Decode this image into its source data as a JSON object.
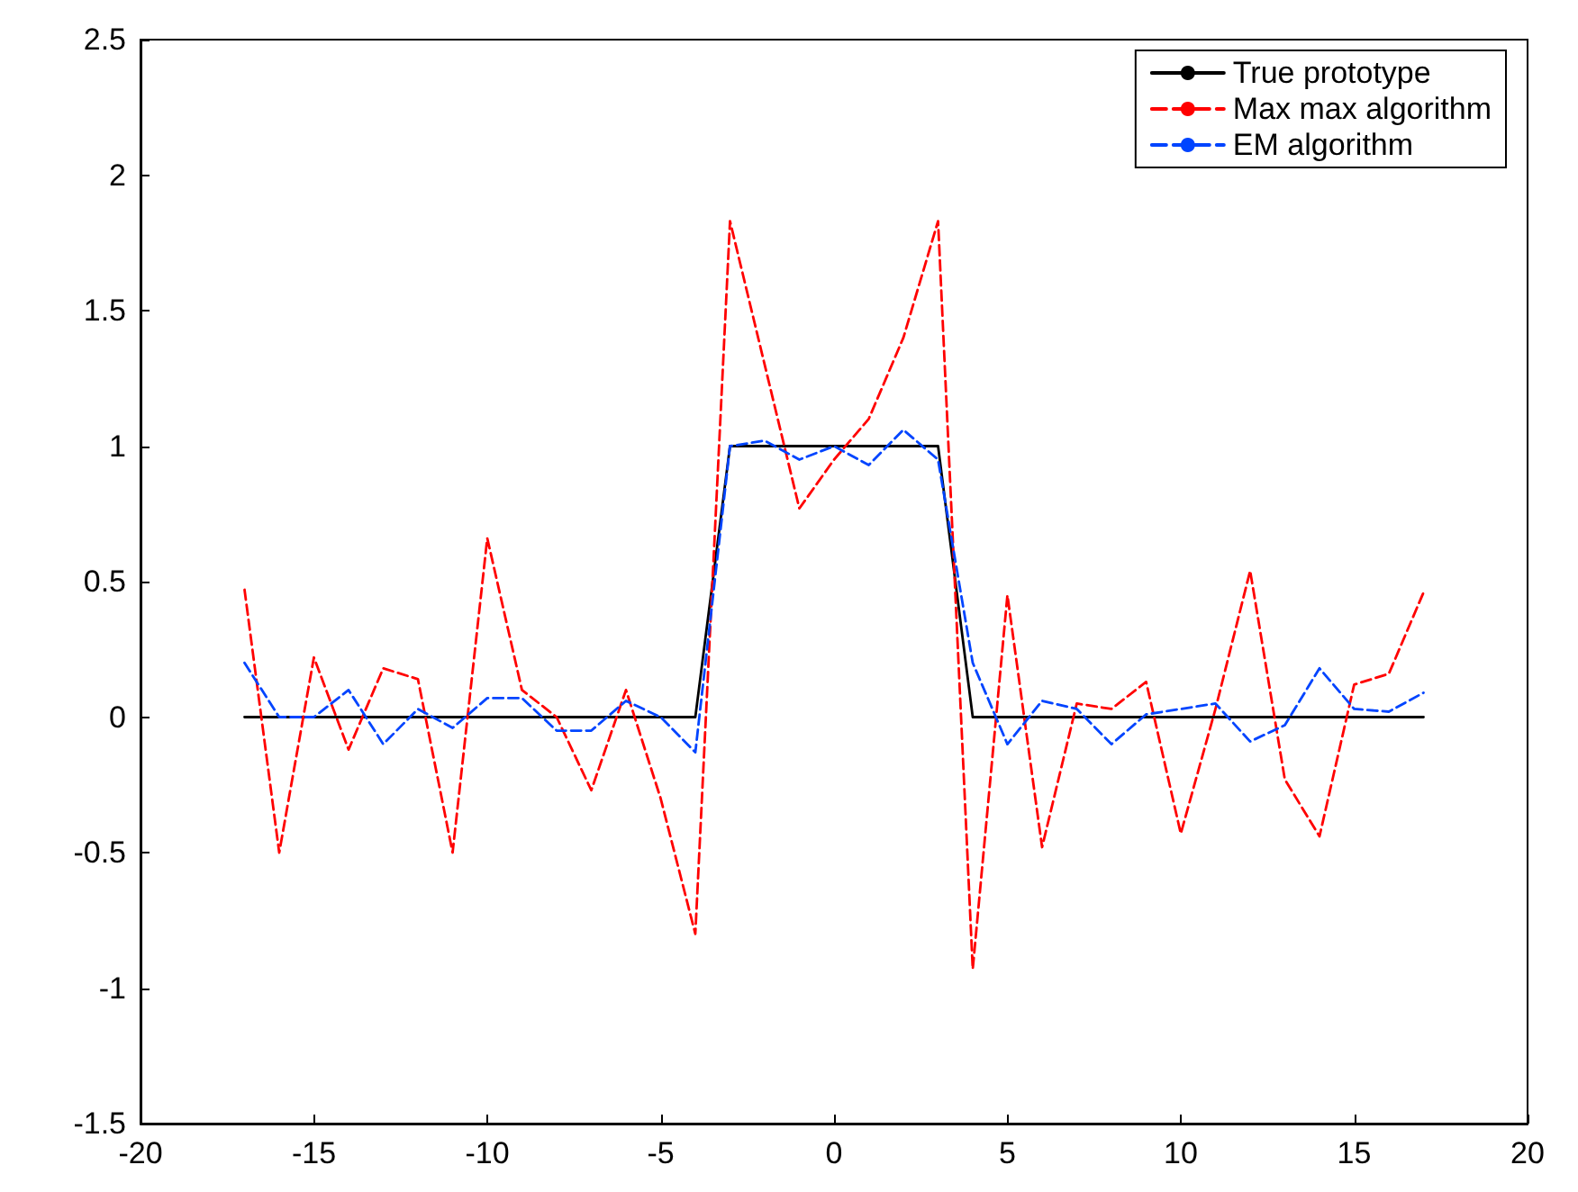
{
  "chart_data": {
    "type": "line",
    "x": [
      -17,
      -16,
      -15,
      -14,
      -13,
      -12,
      -11,
      -10,
      -9,
      -8,
      -7,
      -6,
      -5,
      -4,
      -3,
      -2,
      -1,
      0,
      1,
      2,
      3,
      4,
      5,
      6,
      7,
      8,
      9,
      10,
      11,
      12,
      13,
      14,
      15,
      16,
      17
    ],
    "series": [
      {
        "name": "True prototype",
        "color": "#000000",
        "line_style": "solid",
        "values": [
          0,
          0,
          0,
          0,
          0,
          0,
          0,
          0,
          0,
          0,
          0,
          0,
          0,
          0,
          1,
          1,
          1,
          1,
          1,
          1,
          1,
          0,
          0,
          0,
          0,
          0,
          0,
          0,
          0,
          0,
          0,
          0,
          0,
          0,
          0
        ]
      },
      {
        "name": "Max max algorithm",
        "color": "#ff0000",
        "line_style": "dashed",
        "values": [
          0.47,
          -0.5,
          0.22,
          -0.12,
          0.18,
          0.14,
          -0.5,
          0.66,
          0.1,
          0,
          -0.27,
          0.1,
          -0.3,
          -0.8,
          1.83,
          1.3,
          0.77,
          0.95,
          1.1,
          1.4,
          1.83,
          -0.93,
          0.45,
          -0.48,
          0.05,
          0.03,
          0.13,
          -0.43,
          0.03,
          0.54,
          -0.23,
          -0.44,
          0.12,
          0.16,
          0.46
        ]
      },
      {
        "name": "EM algorithm",
        "color": "#0044ff",
        "line_style": "dashed",
        "values": [
          0.2,
          0,
          0,
          0.1,
          -0.1,
          0.03,
          -0.04,
          0.07,
          0.07,
          -0.05,
          -0.05,
          0.06,
          0,
          -0.13,
          1,
          1.02,
          0.95,
          1,
          0.93,
          1.06,
          0.95,
          0.2,
          -0.1,
          0.06,
          0.03,
          -0.1,
          0.01,
          0.03,
          0.05,
          -0.09,
          -0.03,
          0.18,
          0.03,
          0.02,
          0.09
        ]
      }
    ],
    "xlim": [
      -20,
      20
    ],
    "xticks": [
      -20,
      -15,
      -10,
      -5,
      0,
      5,
      10,
      15,
      20
    ],
    "ylim": [
      -1.5,
      2.5
    ],
    "yticks": [
      -1.5,
      -1,
      -0.5,
      0,
      0.5,
      1,
      1.5,
      2,
      2.5
    ],
    "grid": false,
    "legend": "top right",
    "marker": "none"
  }
}
